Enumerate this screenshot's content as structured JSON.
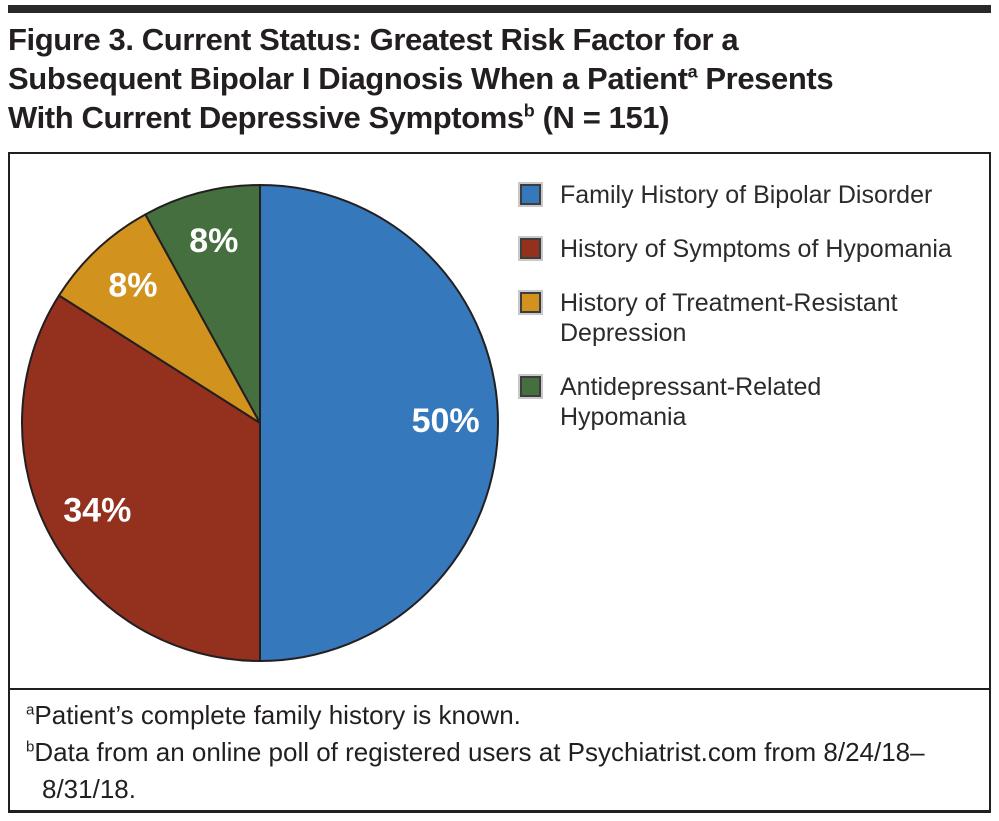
{
  "figure": {
    "title": {
      "line1": "Figure 3. Current Status: Greatest Risk Factor for a",
      "line2_pre": "Subsequent Bipolar I Diagnosis When a Patient",
      "line2_sup": "a",
      "line2_post": " Presents",
      "line3_pre": "With Current Depressive Symptoms",
      "line3_sup": "b",
      "line3_post": " (N = 151)"
    },
    "footnotes": [
      {
        "sup": "a",
        "text": "Patient’s complete family history is known."
      },
      {
        "sup": "b",
        "text": "Data from an online poll of registered users at Psychiatrist.com from 8/24/18–8/31/18."
      }
    ]
  },
  "chart_data": {
    "type": "pie",
    "title": "Current Status: Greatest Risk Factor for a Subsequent Bipolar I Diagnosis When a Patient Presents With Current Depressive Symptoms (N = 151)",
    "n_label": "N = 151",
    "labels": [
      "Family History of Bipolar Disorder",
      "History of Symptoms of Hypomania",
      "History of Treatment-Resistant Depression",
      "Antidepressant-Related Hypomania"
    ],
    "values": [
      50,
      34,
      8,
      8
    ],
    "unit": "%",
    "slice_labels": [
      "50%",
      "34%",
      "8%",
      "8%"
    ],
    "colors": [
      "#3578BB",
      "#93301E",
      "#D2921E",
      "#456F3E"
    ],
    "slice_border_color": "#231F20",
    "slice_label_color": "#FFFFFF",
    "start_angle_deg": 0,
    "direction": "clockwise",
    "legend_position": "right",
    "legend_wrap": [
      [
        "Family History of Bipolar Disorder"
      ],
      [
        "History of Symptoms of Hypomania"
      ],
      [
        "History of Treatment-Resistant",
        "Depression"
      ],
      [
        "Antidepressant-Related",
        "Hypomania"
      ]
    ]
  }
}
